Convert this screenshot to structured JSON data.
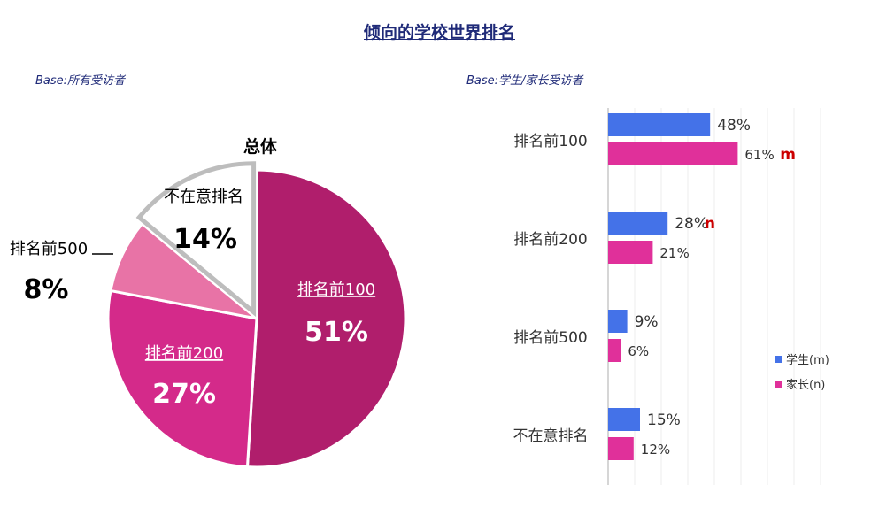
{
  "page": {
    "title": "倾向的学校世界排名",
    "base_left": "Base:所有受访者",
    "base_right": "Base:学生/家长受访者"
  },
  "chart_data": [
    {
      "type": "pie",
      "title": "总体",
      "slices": [
        {
          "label": "排名前100",
          "value": 51,
          "value_text": "51%",
          "color": "#b01e6c"
        },
        {
          "label": "排名前200",
          "value": 27,
          "value_text": "27%",
          "color": "#d42a8a"
        },
        {
          "label": "排名前500",
          "value": 8,
          "value_text": "8%",
          "color": "#e873a6"
        },
        {
          "label": "不在意排名",
          "value": 14,
          "value_text": "14%",
          "color": "#ffffff"
        }
      ]
    },
    {
      "type": "bar",
      "orientation": "horizontal",
      "categories": [
        "排名前100",
        "排名前200",
        "排名前500",
        "不在意排名"
      ],
      "series": [
        {
          "name": "学生(m)",
          "color": "#4472e8",
          "values": [
            48,
            28,
            9,
            15
          ],
          "labels": [
            "48%",
            "28%",
            "9%",
            "15%"
          ],
          "markers": [
            "",
            "n",
            "",
            ""
          ]
        },
        {
          "name": "家长(n)",
          "color": "#e0309a",
          "values": [
            61,
            21,
            6,
            12
          ],
          "labels": [
            "61%",
            "21%",
            "6%",
            "12%"
          ],
          "markers": [
            "m",
            "",
            "",
            ""
          ]
        }
      ],
      "marker_color": "#cc0000",
      "xlim": [
        0,
        100
      ],
      "grid": true,
      "legend": "right"
    }
  ]
}
